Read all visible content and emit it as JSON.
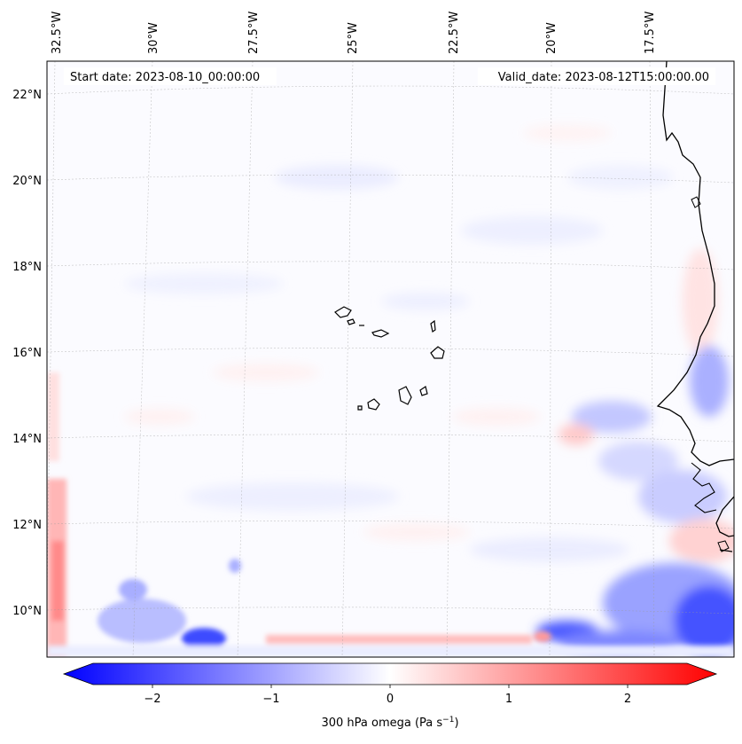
{
  "header": {
    "start_date": "Start date: 2023-08-10_00:00:00",
    "valid_date": "Valid_date: 2023-08-12T15:00:00.00"
  },
  "map": {
    "top_lon_labels": [
      "32.5°W",
      "30°W",
      "27.5°W",
      "25°W",
      "22.5°W",
      "20°W",
      "17.5°W"
    ],
    "lat_labels": [
      "22°N",
      "20°N",
      "18°N",
      "16°N",
      "14°N",
      "12°N",
      "10°N"
    ]
  },
  "colorbar": {
    "cmap": "bwr",
    "min_color": "#0000ff",
    "mid_color": "#ffffff",
    "max_color": "#ff0000",
    "vmin": -2.5,
    "vmax": 2.5,
    "ticks": [
      -2,
      -1,
      0,
      1,
      2
    ],
    "tick_labels": [
      "−2",
      "−1",
      "0",
      "1",
      "2"
    ],
    "label": "300 hPa omega (Pa s",
    "label_sup": "−1",
    "label_close": ")"
  },
  "chart_data": {
    "type": "heatmap",
    "title": "",
    "variable": "300 hPa omega (Pa s−1)",
    "color_range": [
      -2.5,
      2.5
    ],
    "extend": "both",
    "x_ticks": [
      "32.5°W",
      "30°W",
      "27.5°W",
      "25°W",
      "22.5°W",
      "20°W",
      "17.5°W"
    ],
    "y_ticks": [
      "22°N",
      "20°N",
      "18°N",
      "16°N",
      "14°N",
      "12°N",
      "10°N"
    ],
    "grid": true
  }
}
